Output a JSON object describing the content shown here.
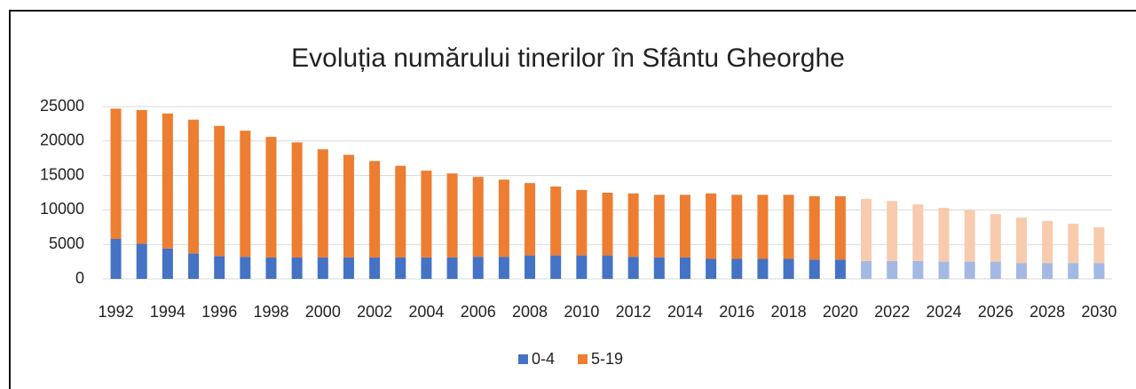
{
  "chart_data": {
    "type": "stacked_bar",
    "title": "Evoluția numărului tinerilor în Sfântu Gheorghe",
    "categories": [
      "1992",
      null,
      "1994",
      null,
      "1996",
      null,
      "1998",
      null,
      "2000",
      null,
      "2002",
      null,
      "2004",
      null,
      "2006",
      null,
      "2008",
      null,
      "2010",
      null,
      "2012",
      null,
      "2014",
      null,
      "2016",
      null,
      "2018",
      null,
      "2020",
      null,
      "2022",
      null,
      "2024",
      null,
      "2026",
      null,
      "2028",
      null,
      "2030"
    ],
    "series": [
      {
        "name": "0-4",
        "color": "#4472c4",
        "light_color": "#a3b9e4",
        "values": [
          5800,
          5100,
          4400,
          3700,
          3300,
          3200,
          3100,
          3100,
          3100,
          3100,
          3100,
          3100,
          3100,
          3100,
          3200,
          3200,
          3400,
          3400,
          3400,
          3400,
          3200,
          3100,
          3100,
          2900,
          2900,
          2900,
          2900,
          2800,
          2800,
          2600,
          2600,
          2600,
          2500,
          2500,
          2500,
          2300,
          2300,
          2300,
          2300
        ]
      },
      {
        "name": "5-19",
        "color": "#ed7d31",
        "light_color": "#f8cbad",
        "values": [
          18900,
          19400,
          19600,
          19400,
          18900,
          18300,
          17500,
          16700,
          15700,
          14900,
          14000,
          13300,
          12600,
          12200,
          11600,
          11200,
          10500,
          10000,
          9500,
          9100,
          9200,
          9100,
          9100,
          9500,
          9300,
          9300,
          9300,
          9200,
          9200,
          9000,
          8700,
          8200,
          7800,
          7500,
          6900,
          6600,
          6100,
          5700,
          5200
        ]
      }
    ],
    "projection_start_index": 29,
    "ylim": [
      0,
      25000
    ],
    "yticks": [
      0,
      5000,
      10000,
      15000,
      20000,
      25000
    ],
    "grid": true,
    "legend": "bottom"
  }
}
